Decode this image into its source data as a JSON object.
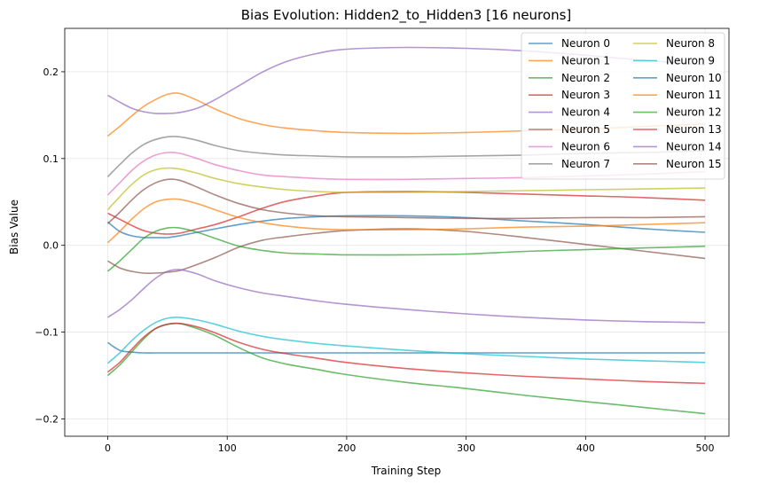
{
  "chart_data": {
    "type": "line",
    "title": "Bias Evolution: Hidden2_to_Hidden3 [16 neurons]",
    "xlabel": "Training Step",
    "ylabel": "Bias Value",
    "xlim": [
      -36,
      520
    ],
    "ylim": [
      -0.22,
      0.25
    ],
    "xticks": [
      0,
      100,
      200,
      300,
      400,
      500
    ],
    "xtick_labels": [
      "0",
      "100",
      "200",
      "300",
      "400",
      "500"
    ],
    "yticks": [
      -0.2,
      -0.1,
      0.0,
      0.1,
      0.2
    ],
    "ytick_labels": [
      "−0.2",
      "−0.1",
      "0.0",
      "0.1",
      "0.2"
    ],
    "grid": true,
    "legend": {
      "placement": "top-right",
      "columns": 2
    },
    "x": [
      0,
      10,
      20,
      30,
      40,
      50,
      60,
      75,
      90,
      110,
      130,
      150,
      175,
      200,
      250,
      300,
      350,
      400,
      450,
      500
    ],
    "series": [
      {
        "name": "Neuron 0",
        "color": "#1f77b4",
        "values": [
          -0.112,
          -0.121,
          -0.123,
          -0.124,
          -0.124,
          -0.124,
          -0.124,
          -0.124,
          -0.124,
          -0.124,
          -0.124,
          -0.124,
          -0.124,
          -0.124,
          -0.124,
          -0.124,
          -0.124,
          -0.124,
          -0.124,
          -0.124
        ]
      },
      {
        "name": "Neuron 1",
        "color": "#ff7f0e",
        "values": [
          0.126,
          0.137,
          0.149,
          0.16,
          0.168,
          0.174,
          0.175,
          0.167,
          0.157,
          0.146,
          0.139,
          0.135,
          0.132,
          0.13,
          0.129,
          0.13,
          0.132,
          0.134,
          0.137,
          0.14
        ]
      },
      {
        "name": "Neuron 2",
        "color": "#2ca02c",
        "values": [
          -0.15,
          -0.138,
          -0.123,
          -0.108,
          -0.096,
          -0.091,
          -0.09,
          -0.096,
          -0.104,
          -0.118,
          -0.13,
          -0.137,
          -0.143,
          -0.149,
          -0.158,
          -0.165,
          -0.173,
          -0.18,
          -0.187,
          -0.194
        ]
      },
      {
        "name": "Neuron 3",
        "color": "#d62728",
        "values": [
          0.037,
          0.03,
          0.023,
          0.017,
          0.014,
          0.013,
          0.014,
          0.019,
          0.024,
          0.033,
          0.043,
          0.051,
          0.057,
          0.061,
          0.062,
          0.061,
          0.059,
          0.057,
          0.055,
          0.052
        ]
      },
      {
        "name": "Neuron 4",
        "color": "#9467bd",
        "values": [
          0.173,
          0.165,
          0.158,
          0.154,
          0.152,
          0.152,
          0.153,
          0.158,
          0.168,
          0.184,
          0.2,
          0.212,
          0.221,
          0.226,
          0.228,
          0.227,
          0.224,
          0.219,
          0.213,
          0.208
        ]
      },
      {
        "name": "Neuron 5",
        "color": "#8c564b",
        "values": [
          -0.018,
          -0.026,
          -0.03,
          -0.032,
          -0.032,
          -0.031,
          -0.029,
          -0.022,
          -0.014,
          -0.002,
          0.006,
          0.01,
          0.014,
          0.017,
          0.019,
          0.016,
          0.009,
          0.001,
          -0.007,
          -0.015
        ]
      },
      {
        "name": "Neuron 6",
        "color": "#e377c2",
        "values": [
          0.058,
          0.072,
          0.086,
          0.097,
          0.104,
          0.107,
          0.106,
          0.1,
          0.093,
          0.086,
          0.081,
          0.079,
          0.077,
          0.076,
          0.076,
          0.077,
          0.078,
          0.08,
          0.082,
          0.085
        ]
      },
      {
        "name": "Neuron 7",
        "color": "#7f7f7f",
        "values": [
          0.079,
          0.093,
          0.106,
          0.116,
          0.122,
          0.125,
          0.125,
          0.121,
          0.115,
          0.109,
          0.106,
          0.104,
          0.103,
          0.102,
          0.102,
          0.103,
          0.104,
          0.106,
          0.107,
          0.109
        ]
      },
      {
        "name": "Neuron 8",
        "color": "#bcbd22",
        "values": [
          0.041,
          0.056,
          0.07,
          0.081,
          0.087,
          0.089,
          0.088,
          0.083,
          0.077,
          0.071,
          0.067,
          0.064,
          0.062,
          0.061,
          0.061,
          0.062,
          0.063,
          0.064,
          0.065,
          0.066
        ]
      },
      {
        "name": "Neuron 9",
        "color": "#17becf",
        "values": [
          -0.136,
          -0.124,
          -0.11,
          -0.098,
          -0.089,
          -0.084,
          -0.083,
          -0.086,
          -0.091,
          -0.099,
          -0.105,
          -0.109,
          -0.113,
          -0.116,
          -0.121,
          -0.125,
          -0.128,
          -0.131,
          -0.133,
          -0.135
        ]
      },
      {
        "name": "Neuron 10",
        "color": "#1f77b4",
        "values": [
          0.027,
          0.016,
          0.011,
          0.009,
          0.009,
          0.009,
          0.011,
          0.015,
          0.019,
          0.024,
          0.028,
          0.031,
          0.033,
          0.034,
          0.034,
          0.032,
          0.028,
          0.024,
          0.019,
          0.015
        ]
      },
      {
        "name": "Neuron 11",
        "color": "#ff7f0e",
        "values": [
          0.003,
          0.016,
          0.03,
          0.042,
          0.05,
          0.053,
          0.053,
          0.048,
          0.041,
          0.032,
          0.026,
          0.022,
          0.019,
          0.018,
          0.018,
          0.019,
          0.021,
          0.022,
          0.024,
          0.026
        ]
      },
      {
        "name": "Neuron 12",
        "color": "#2ca02c",
        "values": [
          -0.03,
          -0.018,
          -0.005,
          0.008,
          0.016,
          0.02,
          0.02,
          0.015,
          0.008,
          -0.001,
          -0.006,
          -0.009,
          -0.01,
          -0.011,
          -0.011,
          -0.01,
          -0.007,
          -0.005,
          -0.003,
          -0.001
        ]
      },
      {
        "name": "Neuron 13",
        "color": "#d62728",
        "values": [
          -0.146,
          -0.135,
          -0.12,
          -0.106,
          -0.096,
          -0.091,
          -0.09,
          -0.094,
          -0.101,
          -0.112,
          -0.12,
          -0.125,
          -0.13,
          -0.135,
          -0.142,
          -0.147,
          -0.151,
          -0.154,
          -0.157,
          -0.159
        ]
      },
      {
        "name": "Neuron 14",
        "color": "#9467bd",
        "values": [
          -0.083,
          -0.074,
          -0.063,
          -0.05,
          -0.038,
          -0.03,
          -0.028,
          -0.033,
          -0.041,
          -0.049,
          -0.055,
          -0.059,
          -0.064,
          -0.068,
          -0.074,
          -0.079,
          -0.083,
          -0.086,
          -0.088,
          -0.089
        ]
      },
      {
        "name": "Neuron 15",
        "color": "#8c564b",
        "values": [
          0.025,
          0.038,
          0.052,
          0.064,
          0.072,
          0.076,
          0.075,
          0.067,
          0.058,
          0.048,
          0.041,
          0.037,
          0.034,
          0.033,
          0.032,
          0.031,
          0.031,
          0.032,
          0.032,
          0.033
        ]
      }
    ]
  }
}
